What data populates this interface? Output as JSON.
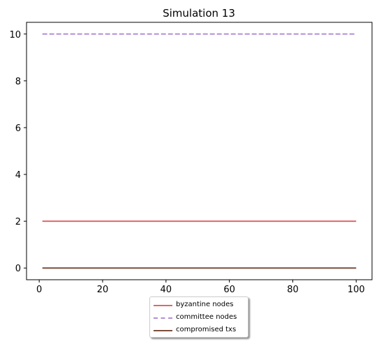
{
  "chart_data": {
    "type": "line",
    "title": "Simulation 13",
    "xlabel": "",
    "ylabel": "",
    "xlim": [
      -4,
      105
    ],
    "ylim": [
      -0.5,
      10.5
    ],
    "xticks": [
      0,
      20,
      40,
      60,
      80,
      100
    ],
    "yticks": [
      0,
      2,
      4,
      6,
      8,
      10
    ],
    "grid": false,
    "legend_position": "bottom-center, below plot",
    "series": [
      {
        "name": "byzantine nodes",
        "color": "#e06666",
        "style": "solid",
        "x": [
          1,
          100
        ],
        "y": [
          2,
          2
        ]
      },
      {
        "name": "committee nodes",
        "color": "#b48fd6",
        "style": "dashed",
        "x": [
          1,
          100
        ],
        "y": [
          10,
          10
        ]
      },
      {
        "name": "compromised txs",
        "color": "#7b4f3c",
        "style": "solid",
        "x": [
          1,
          100
        ],
        "y": [
          0,
          0
        ]
      }
    ]
  }
}
